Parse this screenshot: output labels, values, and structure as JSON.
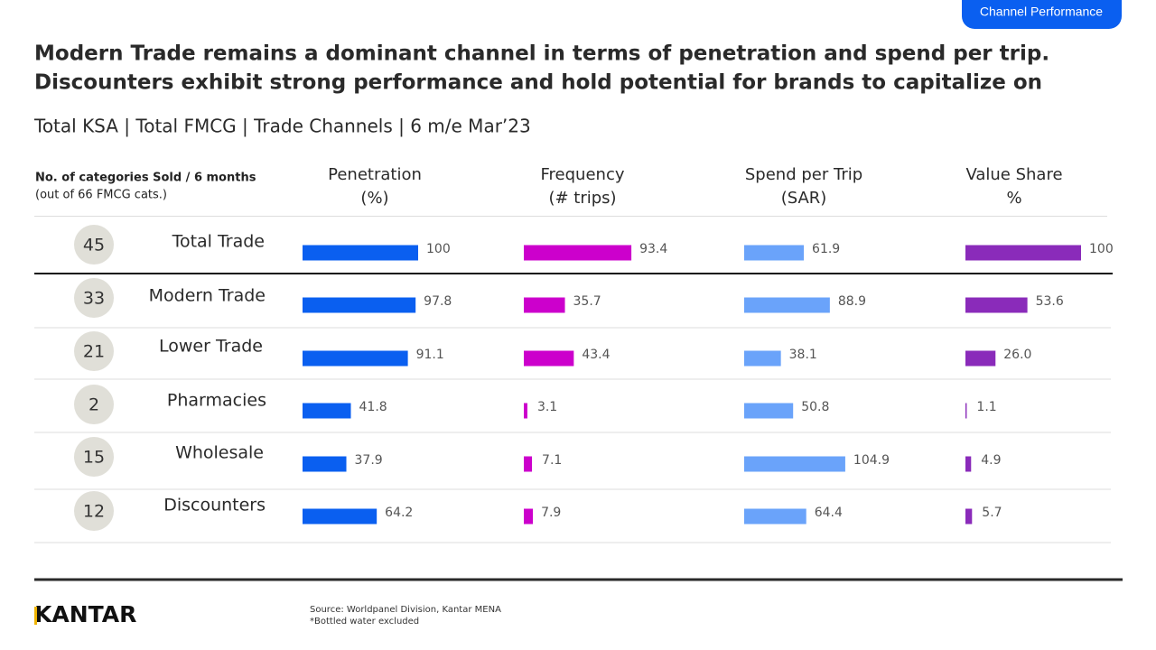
{
  "badge": "Channel Performance",
  "title": [
    "Modern Trade remains a dominant channel in terms of penetration and spend per trip.",
    "Discounters exhibit strong performance and hold potential for brands to capitalize on"
  ],
  "subtitle": "Total KSA | Total FMCG | Trade Channels | 6 m/e Mar’23",
  "categories_header": [
    "No. of categories Sold / 6 months",
    "(out of 66 FMCG cats.)"
  ],
  "columns": [
    {
      "name": [
        "Penetration",
        "(%)"
      ],
      "color": "#0a5ff0"
    },
    {
      "name": [
        "Frequency",
        "(# trips)"
      ],
      "color": "#cc00cc"
    },
    {
      "name": [
        "Spend per Trip",
        "(SAR)"
      ],
      "color": "#6aa3fa"
    },
    {
      "name": [
        "Value Share",
        "%"
      ],
      "color": "#8a2bba"
    }
  ],
  "rows": [
    {
      "label": "Total Trade",
      "categories": 45,
      "values": [
        100,
        93.4,
        61.9,
        100
      ]
    },
    {
      "label": "Modern Trade",
      "categories": 33,
      "values": [
        97.8,
        35.7,
        88.9,
        53.6
      ]
    },
    {
      "label": "Lower Trade",
      "categories": 21,
      "values": [
        91.1,
        43.4,
        38.1,
        26
      ],
      "value_labels": [
        "91.1",
        "43.4",
        "38.1",
        "26.0"
      ]
    },
    {
      "label": "Pharmacies",
      "categories": 2,
      "values": [
        41.8,
        3.1,
        50.8,
        1.1
      ]
    },
    {
      "label": "Wholesale",
      "categories": 15,
      "values": [
        37.9,
        7.1,
        104.9,
        4.9
      ]
    },
    {
      "label": "Discounters",
      "categories": 12,
      "values": [
        64.2,
        7.9,
        64.4,
        5.7
      ]
    }
  ],
  "source": "Source: Worldpanel Division, Kantar MENA",
  "note": "*Bottled water excluded",
  "logo": "KANTAR"
}
